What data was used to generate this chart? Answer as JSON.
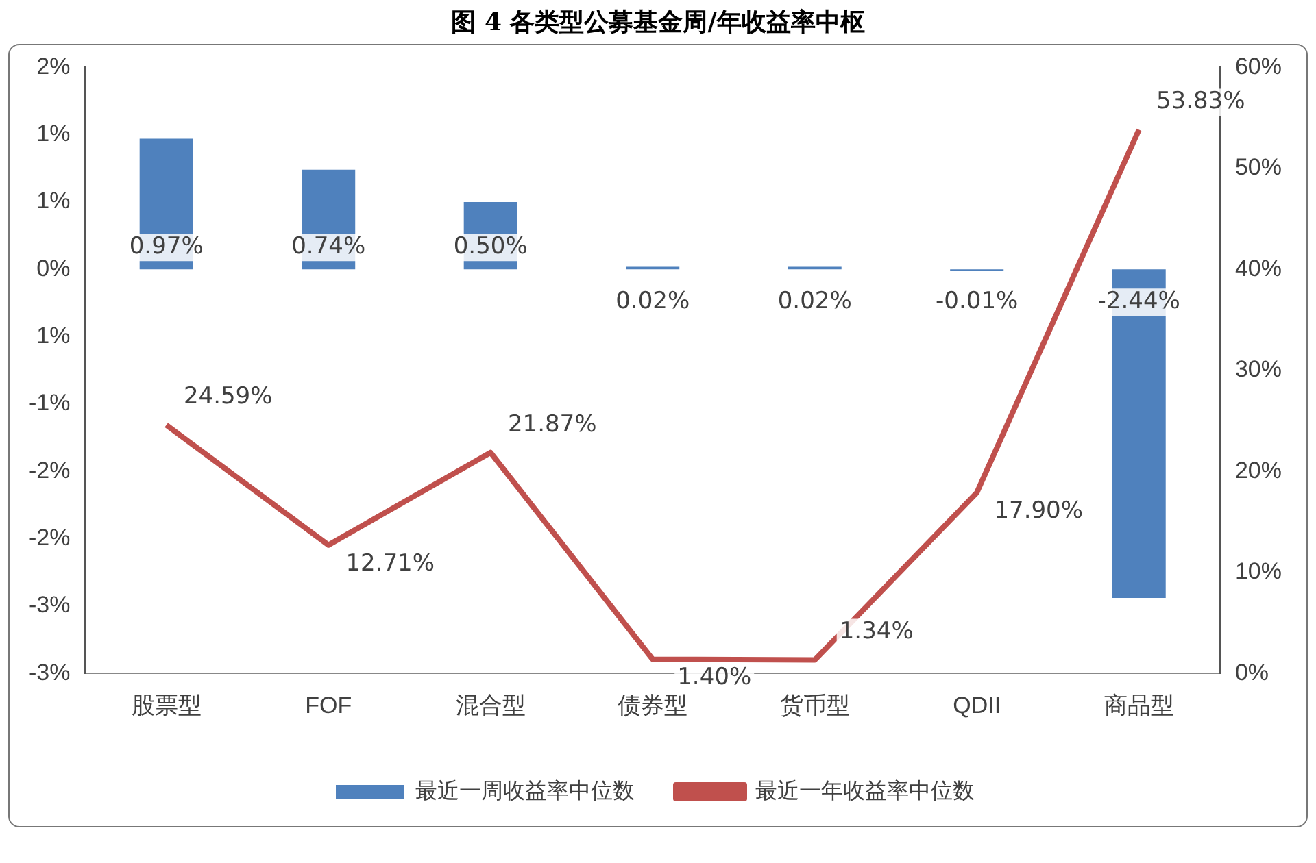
{
  "chart_data": {
    "type": "bar",
    "title": "图 4 各类型公募基金周/年收益率中枢",
    "categories": [
      "股票型",
      "FOF",
      "混合型",
      "债券型",
      "货币型",
      "QDII",
      "商品型"
    ],
    "series": [
      {
        "name": "最近一周收益率中位数",
        "color": "#4f81bd",
        "values": [
          0.97,
          0.74,
          0.5,
          0.02,
          0.02,
          -0.01,
          -2.44
        ],
        "value_labels": [
          "0.97%",
          "0.74%",
          "0.50%",
          "0.02%",
          "0.02%",
          "-0.01%",
          "-2.44%"
        ]
      },
      {
        "name": "最近一年收益率中位数",
        "type": "line",
        "axis": "y2",
        "color": "#c0504d",
        "values": [
          24.59,
          12.71,
          21.87,
          1.4,
          1.34,
          17.9,
          53.83
        ],
        "value_labels": [
          "24.59%",
          "12.71%",
          "21.87%",
          "1.40%",
          "1.34%",
          "17.90%",
          "53.83%"
        ]
      }
    ],
    "ylim": [
      -3,
      1.5
    ],
    "yticks": [
      {
        "value": 1.5,
        "label": "2%"
      },
      {
        "value": 1,
        "label": "1%"
      },
      {
        "value": 0.5,
        "label": "1%"
      },
      {
        "value": 0,
        "label": "0%"
      },
      {
        "value": -0.5,
        "label": "1%"
      },
      {
        "value": -1,
        "label": "-1%"
      },
      {
        "value": -1.5,
        "label": "-2%"
      },
      {
        "value": -2,
        "label": "-2%"
      },
      {
        "value": -2.5,
        "label": "-3%"
      },
      {
        "value": -3,
        "label": "-3%"
      }
    ],
    "y2lim": [
      0,
      60
    ],
    "y2ticks": [
      {
        "value": 0,
        "label": "0%"
      },
      {
        "value": 10,
        "label": "10%"
      },
      {
        "value": 20,
        "label": "20%"
      },
      {
        "value": 30,
        "label": "30%"
      },
      {
        "value": 40,
        "label": "40%"
      },
      {
        "value": 50,
        "label": "50%"
      },
      {
        "value": 60,
        "label": "60%"
      }
    ],
    "grid": false,
    "legend": "bottom",
    "marker": "none",
    "line_style": "solid"
  }
}
